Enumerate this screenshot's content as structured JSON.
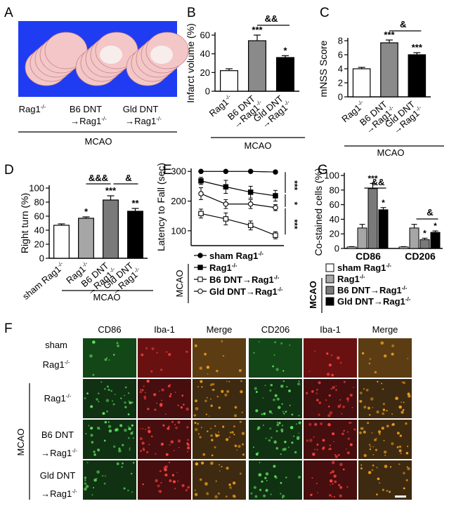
{
  "panels": {
    "A": {
      "letter": "A",
      "groups": [
        {
          "name": "Rag1",
          "sup": "-/-",
          "line2": "",
          "line2sup": ""
        },
        {
          "name": "B6 DNT",
          "sup": "",
          "line2": "→Rag1",
          "line2sup": "-/-"
        },
        {
          "name": "Gld DNT",
          "sup": "",
          "line2": "→Rag1",
          "line2sup": "-/-"
        }
      ],
      "mcao_label": "MCAO",
      "colors": {
        "background": "#1f3cf2",
        "tissue": "#f3c7c7",
        "infarct": "#f7f4f2"
      }
    },
    "B": {
      "letter": "B",
      "significance": "&&",
      "mcao_label": "MCAO"
    },
    "C": {
      "letter": "C",
      "significance": "&",
      "mcao_label": "MCAO"
    },
    "D": {
      "letter": "D",
      "significance_1": "&&&",
      "significance_2": "&",
      "mcao_label": "MCAO"
    },
    "E": {
      "letter": "E",
      "mcao_label": "MCAO"
    },
    "F": {
      "letter": "F",
      "columns": [
        "CD86",
        "Iba-1",
        "Merge",
        "CD206",
        "Iba-1",
        "Merge"
      ],
      "row_sham": {
        "line1": "sham",
        "line2": "Rag1",
        "line2sup": "-/-"
      },
      "row_rag": {
        "line1": "Rag1",
        "line1sup": "-/-"
      },
      "row_b6": {
        "line1": "B6 DNT",
        "line2": "→Rag1",
        "line2sup": "-/-"
      },
      "row_gld": {
        "line1": "Gld DNT",
        "line2": "→Rag1",
        "line2sup": "-/-"
      },
      "mcao_label": "MCAO",
      "colors": {
        "green": "#1e7a22",
        "red": "#b81818",
        "merge": "#a0681c",
        "dark": "#0a0a0a"
      }
    },
    "G": {
      "letter": "G",
      "significance_1": "&&",
      "significance_2": "&",
      "mcao_label": "MCAO"
    }
  },
  "legend_E": [
    {
      "label": "sham Rag1",
      "sup": "-/-",
      "marker": "filled-circle"
    },
    {
      "label": "Rag1",
      "sup": "-/-",
      "marker": "filled-square"
    },
    {
      "label": "B6 DNT→Rag1",
      "sup": "-/-",
      "marker": "open-square"
    },
    {
      "label": "Gld DNT→Rag1",
      "sup": "-/-",
      "marker": "open-circle"
    }
  ],
  "legend_G": [
    {
      "label": "sham Rag1",
      "sup": "-/-",
      "color": "#ffffff"
    },
    {
      "label": "Rag1",
      "sup": "-/-",
      "color": "#a6a6a6"
    },
    {
      "label": "B6 DNT→Rag1",
      "sup": "-/-",
      "color": "#7a7a7a"
    },
    {
      "label": "Gld DNT→Rag1",
      "sup": "-/-",
      "color": "#000000"
    }
  ],
  "chart_data": [
    {
      "panel": "B",
      "type": "bar",
      "categories": [
        "Rag1-/-",
        "B6 DNT→Rag1-/-",
        "Gld DNT→Rag1-/-"
      ],
      "values": [
        22,
        54,
        36
      ],
      "errors": [
        2,
        6,
        2
      ],
      "stars": [
        "",
        "***",
        "*"
      ],
      "colors": [
        "#ffffff",
        "#8a8a8a",
        "#000000"
      ],
      "ylabel": "Infarct volume (%)",
      "ylim": [
        0,
        60
      ],
      "yticks": [
        0,
        20,
        40,
        60
      ]
    },
    {
      "panel": "C",
      "type": "bar",
      "categories": [
        "Rag1-/-",
        "B6 DNT→Rag1-/-",
        "Gld DNT→Rag1-/-"
      ],
      "values": [
        4.0,
        7.7,
        6.0
      ],
      "errors": [
        0.2,
        0.4,
        0.3
      ],
      "stars": [
        "",
        "***",
        "***"
      ],
      "colors": [
        "#ffffff",
        "#8a8a8a",
        "#000000"
      ],
      "ylabel": "mNSS Score",
      "ylim": [
        0,
        8
      ],
      "yticks": [
        0,
        2,
        4,
        6,
        8
      ]
    },
    {
      "panel": "D",
      "type": "bar",
      "categories": [
        "sham Rag1-/-",
        "Rag1-/-",
        "B6 DNT→Rag1-/-",
        "Gld DNT→Rag1-/-"
      ],
      "values": [
        47,
        57,
        83,
        67
      ],
      "errors": [
        2,
        2,
        6,
        4
      ],
      "stars": [
        "",
        "*",
        "***",
        "**"
      ],
      "colors": [
        "#ffffff",
        "#a6a6a6",
        "#7a7a7a",
        "#000000"
      ],
      "ylabel": "Right turn (%)",
      "ylim": [
        0,
        100
      ],
      "yticks": [
        0,
        20,
        40,
        60,
        80,
        100
      ]
    },
    {
      "panel": "E",
      "type": "line",
      "x": [
        1,
        2,
        3,
        4
      ],
      "ylim": [
        50,
        310
      ],
      "yticks": [
        100,
        200,
        300
      ],
      "ylabel": "Latency to Fall (sec)",
      "series": [
        {
          "name": "sham Rag1-/-",
          "values": [
            300,
            300,
            300,
            298
          ],
          "errors": [
            2,
            2,
            2,
            5
          ],
          "marker": "filled-circle"
        },
        {
          "name": "Rag1-/-",
          "values": [
            268,
            248,
            230,
            218
          ],
          "errors": [
            12,
            22,
            20,
            18
          ],
          "marker": "filled-square"
        },
        {
          "name": "B6 DNT→Rag1-/-",
          "values": [
            158,
            140,
            118,
            85
          ],
          "errors": [
            15,
            20,
            15,
            12
          ],
          "marker": "open-square"
        },
        {
          "name": "Gld DNT→Rag1-/-",
          "values": [
            225,
            190,
            190,
            178
          ],
          "errors": [
            20,
            15,
            15,
            10
          ],
          "marker": "open-circle"
        }
      ],
      "stars": [
        "***",
        "*",
        "***"
      ]
    },
    {
      "panel": "G",
      "type": "bar",
      "categories": [
        "CD86",
        "CD206"
      ],
      "ylabel": "Co-stained cells (%)",
      "ylim": [
        0,
        100
      ],
      "yticks": [
        0,
        20,
        40,
        60,
        80,
        100
      ],
      "series": [
        {
          "name": "sham Rag1-/-",
          "values": [
            2,
            2
          ],
          "errors": [
            0.5,
            0.5
          ],
          "color": "#ffffff"
        },
        {
          "name": "Rag1-/-",
          "values": [
            28,
            28
          ],
          "errors": [
            5,
            5
          ],
          "color": "#a6a6a6"
        },
        {
          "name": "B6 DNT→Rag1-/-",
          "values": [
            82,
            12
          ],
          "errors": [
            7,
            2
          ],
          "color": "#7a7a7a"
        },
        {
          "name": "Gld DNT→Rag1-/-",
          "values": [
            53,
            22
          ],
          "errors": [
            3,
            2
          ],
          "color": "#000000"
        }
      ],
      "stars": [
        [
          "",
          "",
          "***",
          "*"
        ],
        [
          "",
          "",
          "*",
          "*"
        ]
      ]
    }
  ]
}
